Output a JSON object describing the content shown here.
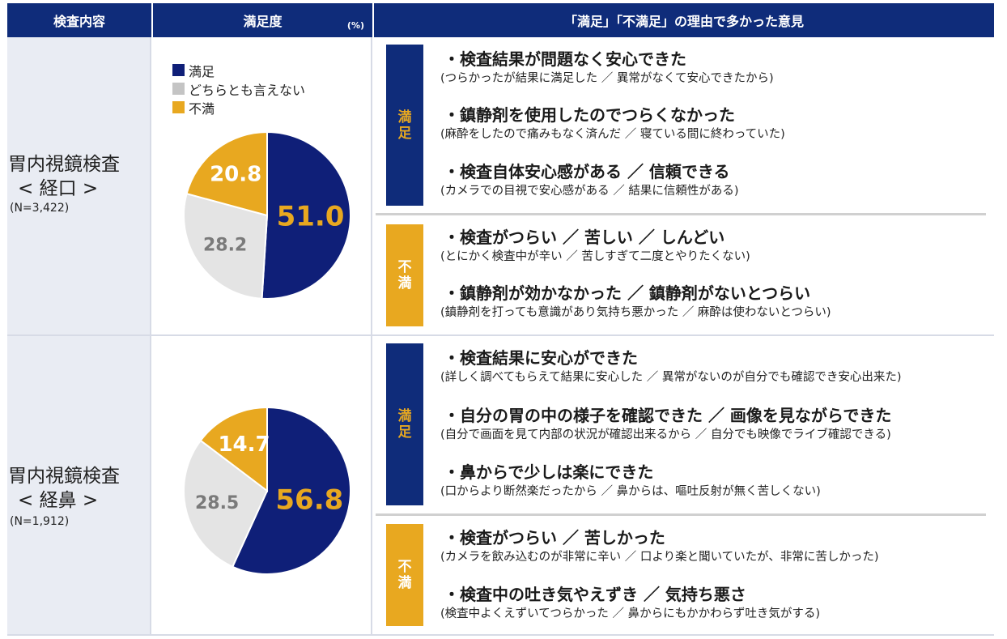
{
  "header": {
    "col1": "検査内容",
    "col2": "満足度",
    "col2_unit": "(%)",
    "col3": "「満足」「不満足」の理由で多かった意見"
  },
  "legend": [
    {
      "label": "満足",
      "color": "#0f1f78"
    },
    {
      "label": "どちらとも言えない",
      "color": "#c4c4c4"
    },
    {
      "label": "不満",
      "color": "#e8a820"
    }
  ],
  "chart_data": [
    {
      "type": "pie",
      "title": "",
      "categories": [
        "満足",
        "どちらとも言えない",
        "不満"
      ],
      "values": [
        51.0,
        28.2,
        20.8
      ],
      "value_labels": [
        "51.0",
        "28.2",
        "20.8"
      ],
      "colors": [
        "#0f1f78",
        "#e4e4e4",
        "#e8a820"
      ],
      "label_colors": [
        "#e8a820",
        "#7a7a7a",
        "#ffffff"
      ]
    },
    {
      "type": "pie",
      "title": "",
      "categories": [
        "満足",
        "どちらとも言えない",
        "不満"
      ],
      "values": [
        56.8,
        28.5,
        14.7
      ],
      "value_labels": [
        "56.8",
        "28.5",
        "14.7"
      ],
      "colors": [
        "#0f1f78",
        "#e4e4e4",
        "#e8a820"
      ],
      "label_colors": [
        "#e8a820",
        "#7a7a7a",
        "#ffffff"
      ]
    }
  ],
  "rows": [
    {
      "exam_line1": "胃内視鏡検査",
      "exam_line2": "< 経口 >",
      "n": "(N=3,422)",
      "satisfied_label": "満足",
      "dissatisfied_label": "不満",
      "satisfied": [
        {
          "main": "・検査結果が問題なく安心できた",
          "sub": "(つらかったが結果に満足した ／ 異常がなくて安心できたから)"
        },
        {
          "main": "・鎮静剤を使用したのでつらくなかった",
          "sub": "(麻酔をしたので痛みもなく済んだ ／ 寝ている間に終わっていた)"
        },
        {
          "main": "・検査自体安心感がある ／ 信頼できる",
          "sub": "(カメラでの目視で安心感がある ／ 結果に信頼性がある)"
        }
      ],
      "dissatisfied": [
        {
          "main": "・検査がつらい ／ 苦しい ／ しんどい",
          "sub": "(とにかく検査中が辛い ／ 苦しすぎて二度とやりたくない)"
        },
        {
          "main": "・鎮静剤が効かなかった ／ 鎮静剤がないとつらい",
          "sub": "(鎮静剤を打っても意識があり気持ち悪かった ／ 麻酔は使わないとつらい)"
        }
      ]
    },
    {
      "exam_line1": "胃内視鏡検査",
      "exam_line2": "< 経鼻 >",
      "n": "(N=1,912)",
      "satisfied_label": "満足",
      "dissatisfied_label": "不満",
      "satisfied": [
        {
          "main": "・検査結果に安心ができた",
          "sub": "(詳しく調べてもらえて結果に安心した ／ 異常がないのが自分でも確認でき安心出来た)"
        },
        {
          "main": "・自分の胃の中の様子を確認できた ／ 画像を見ながらできた",
          "sub": "(自分で画面を見て内部の状況が確認出来るから ／ 自分でも映像でライブ確認できる)"
        },
        {
          "main": "・鼻からで少しは楽にできた",
          "sub": "(口からより断然楽だったから ／ 鼻からは、嘔吐反射が無く苦しくない)"
        }
      ],
      "dissatisfied": [
        {
          "main": "・検査がつらい ／ 苦しかった",
          "sub": "(カメラを飲み込むのが非常に辛い ／ 口より楽と聞いていたが、非常に苦しかった)"
        },
        {
          "main": "・検査中の吐き気やえずき ／ 気持ち悪さ",
          "sub": "(検査中よくえずいてつらかった ／ 鼻からにもかかわらず吐き気がする)"
        }
      ]
    }
  ]
}
